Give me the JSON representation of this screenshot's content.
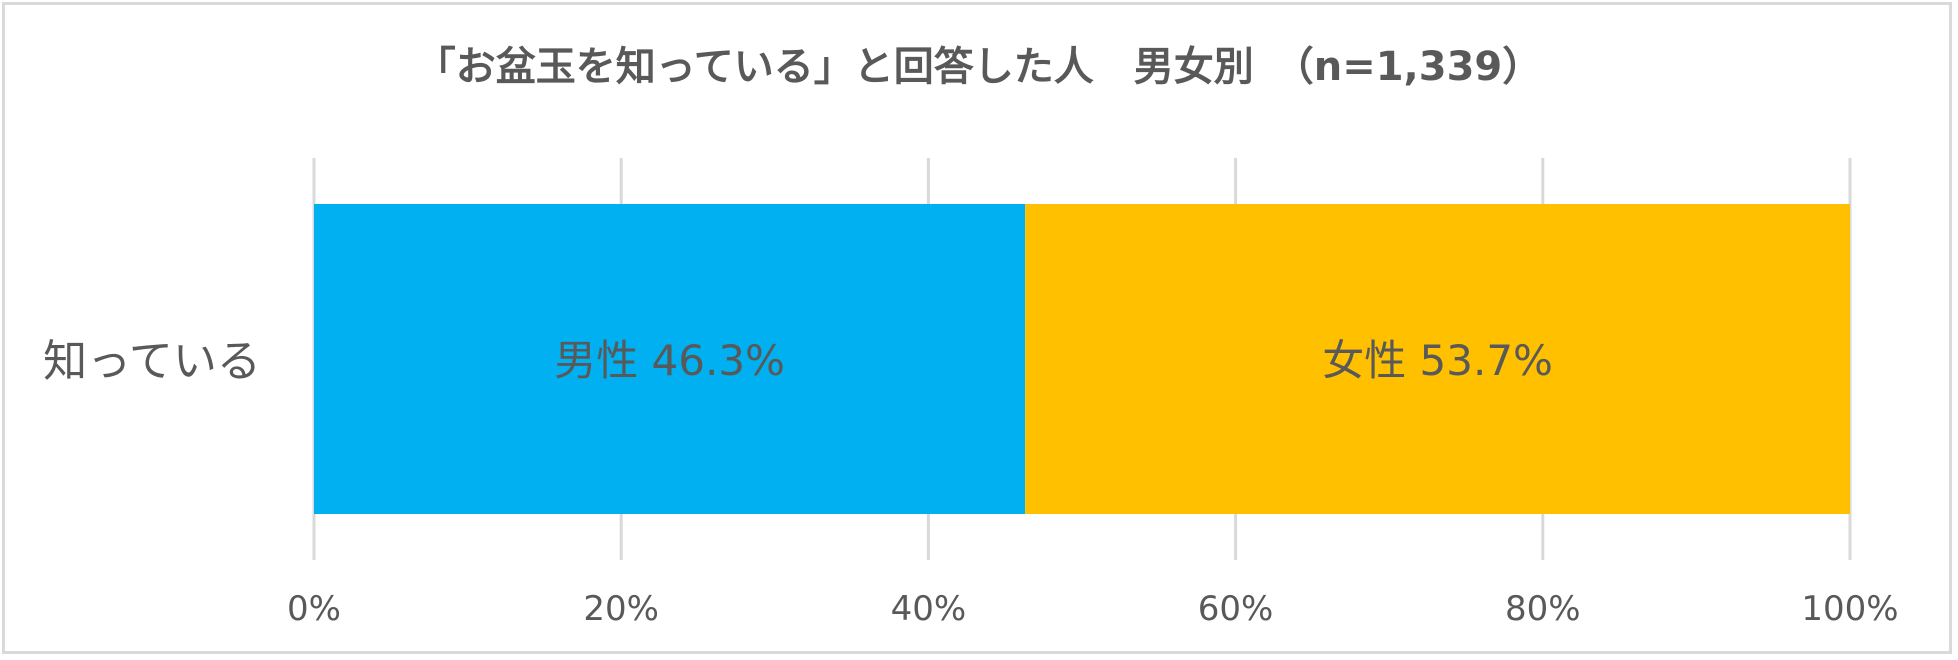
{
  "chart_data": {
    "type": "bar",
    "orientation": "horizontal",
    "stacked": true,
    "percent_stacked": true,
    "title": "「お盆玉を知っている」と回答した人　男女別　（n=1,339）",
    "categories": [
      "知っている"
    ],
    "series": [
      {
        "name": "男性",
        "values": [
          46.3
        ],
        "label": "男性 46.3%",
        "color": "#00b0f0"
      },
      {
        "name": "女性",
        "values": [
          53.7
        ],
        "label": "女性 53.7%",
        "color": "#ffc000"
      }
    ],
    "xlim": [
      0,
      100
    ],
    "x_ticks": [
      0,
      20,
      40,
      60,
      80,
      100
    ],
    "x_tick_labels": [
      "0%",
      "20%",
      "40%",
      "60%",
      "80%",
      "100%"
    ],
    "grid": true,
    "legend": "none",
    "colors": {
      "text": "#595959",
      "grid": "#d9d9d9",
      "border": "#d9d9d9",
      "background": "#ffffff"
    }
  }
}
